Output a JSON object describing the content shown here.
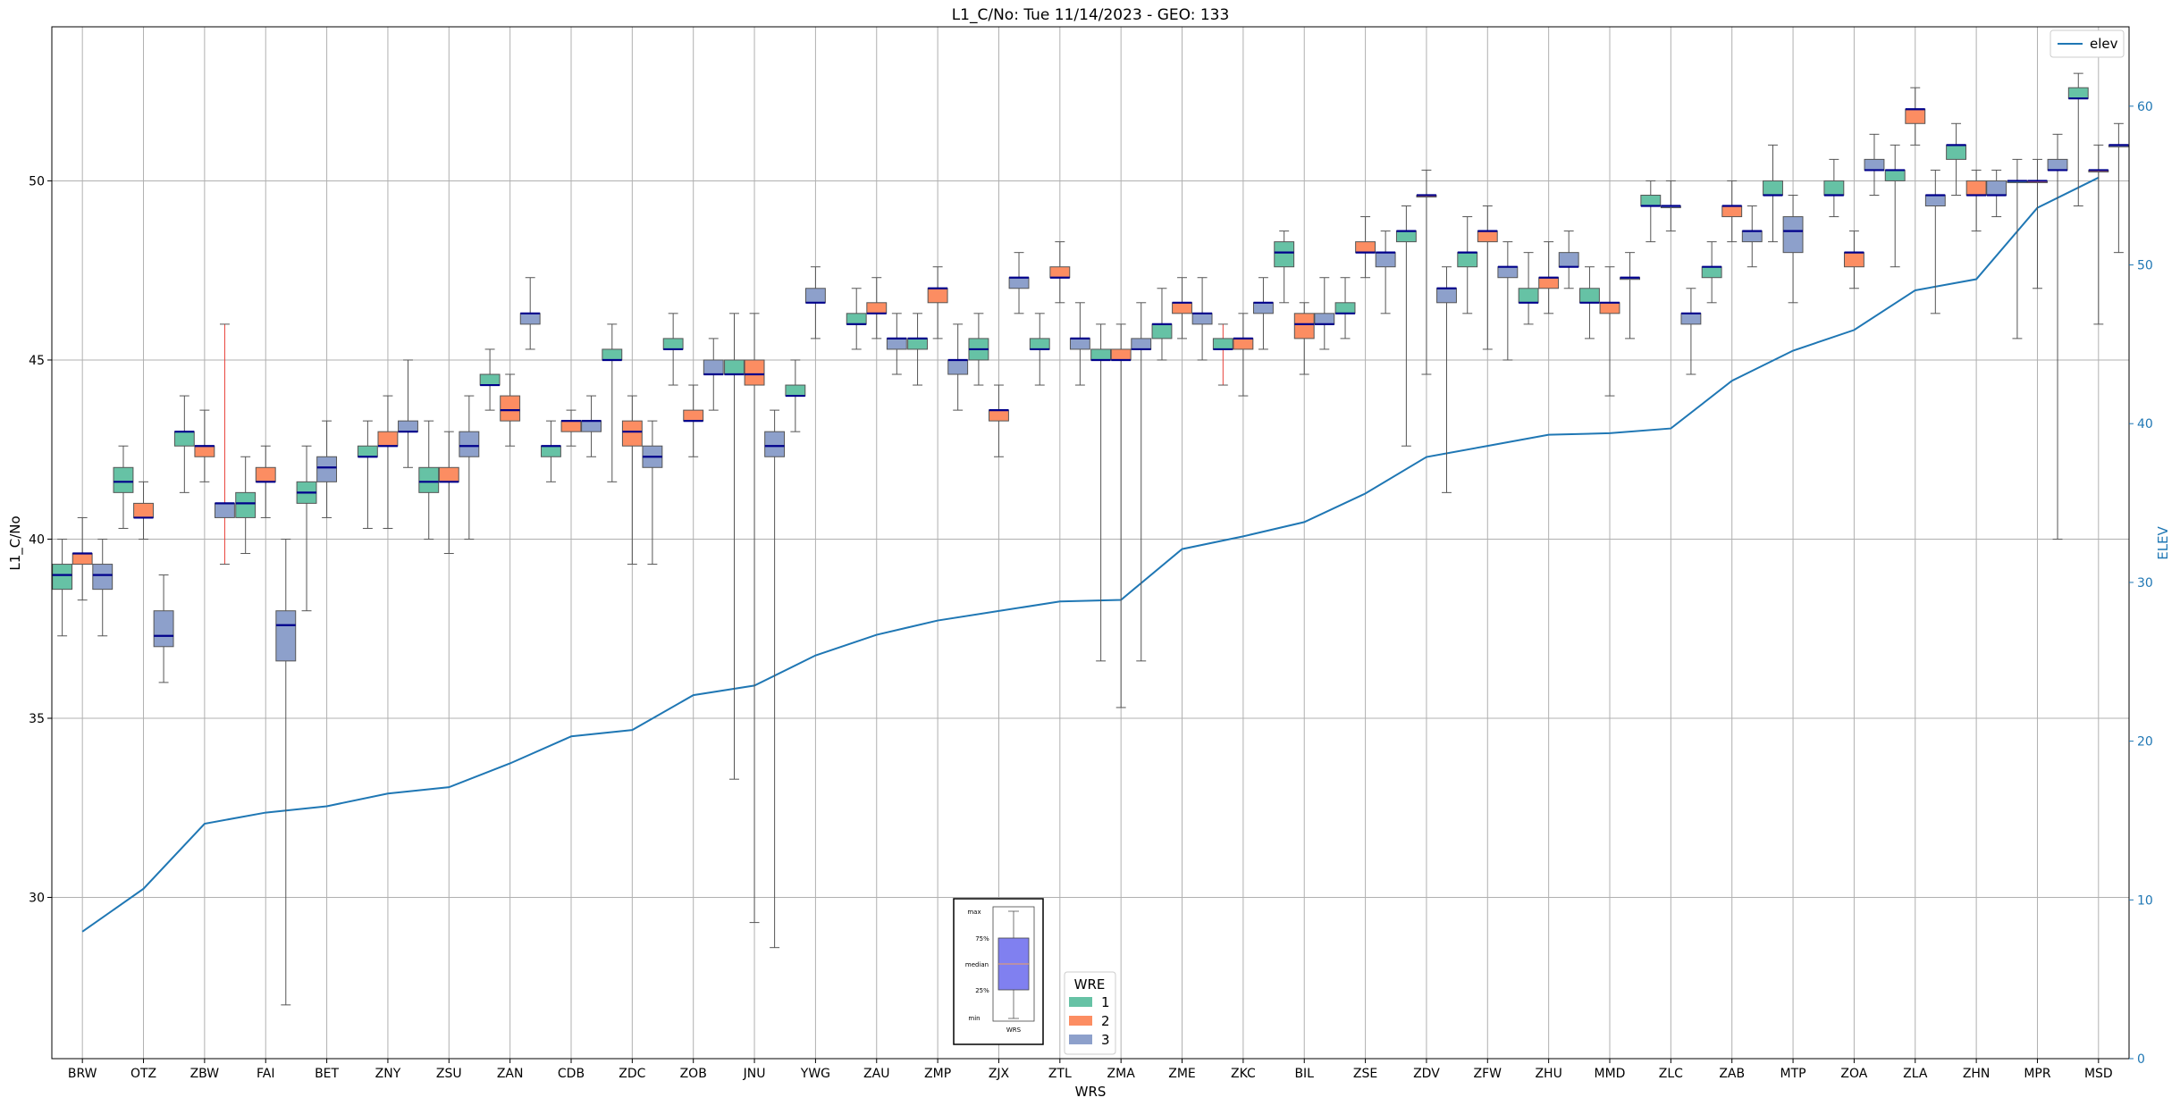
{
  "chart_data": {
    "type": "box",
    "title": "L1_C/No: Tue 11/14/2023 - GEO: 133",
    "xlabel": "WRS",
    "ylabel": "L1_C/No",
    "y2label": "ELEV",
    "ylim": [
      25.5,
      54.3
    ],
    "y2lim": [
      0,
      65
    ],
    "yticks": [
      "30",
      "35",
      "40",
      "45",
      "50"
    ],
    "y2ticks": [
      "0",
      "10",
      "20",
      "30",
      "40",
      "50",
      "60"
    ],
    "grid": true,
    "categories": [
      "BRW",
      "OTZ",
      "ZBW",
      "FAI",
      "BET",
      "ZNY",
      "ZSU",
      "ZAN",
      "CDB",
      "ZDC",
      "ZOB",
      "JNU",
      "YWG",
      "ZAU",
      "ZMP",
      "ZJX",
      "ZTL",
      "ZMA",
      "ZME",
      "ZKC",
      "BIL",
      "ZSE",
      "ZDV",
      "ZFW",
      "ZHU",
      "MMD",
      "ZLC",
      "ZAB",
      "MTP",
      "ZOA",
      "ZLA",
      "ZHN",
      "MPR",
      "MSD"
    ],
    "wre_colors": {
      "1": "#66c2a5",
      "2": "#fc8d62",
      "3": "#8da0cb"
    },
    "box_series": [
      {
        "cat": "BRW",
        "wre": 1,
        "min": 37.3,
        "q1": 38.6,
        "med": 39.0,
        "q3": 39.3,
        "max": 40.0
      },
      {
        "cat": "BRW",
        "wre": 2,
        "min": 38.3,
        "q1": 39.3,
        "med": 39.6,
        "q3": 39.6,
        "max": 40.6
      },
      {
        "cat": "BRW",
        "wre": 3,
        "min": 37.3,
        "q1": 38.6,
        "med": 39.0,
        "q3": 39.3,
        "max": 40.0
      },
      {
        "cat": "OTZ",
        "wre": 1,
        "min": 40.3,
        "q1": 41.3,
        "med": 41.6,
        "q3": 42.0,
        "max": 42.6
      },
      {
        "cat": "OTZ",
        "wre": 2,
        "min": 40.0,
        "q1": 40.6,
        "med": 40.6,
        "q3": 41.0,
        "max": 41.6
      },
      {
        "cat": "OTZ",
        "wre": 3,
        "min": 36.0,
        "q1": 37.0,
        "med": 37.3,
        "q3": 38.0,
        "max": 39.0
      },
      {
        "cat": "ZBW",
        "wre": 1,
        "min": 41.3,
        "q1": 42.6,
        "med": 43.0,
        "q3": 43.0,
        "max": 44.0
      },
      {
        "cat": "ZBW",
        "wre": 2,
        "min": 41.6,
        "q1": 42.3,
        "med": 42.6,
        "q3": 42.6,
        "max": 43.6
      },
      {
        "cat": "ZBW",
        "wre": 3,
        "min": 39.3,
        "q1": 40.6,
        "med": 41.0,
        "q3": 41.0,
        "max": 46.0,
        "red": true
      },
      {
        "cat": "FAI",
        "wre": 1,
        "min": 39.6,
        "q1": 40.6,
        "med": 41.0,
        "q3": 41.3,
        "max": 42.3
      },
      {
        "cat": "FAI",
        "wre": 2,
        "min": 40.6,
        "q1": 41.6,
        "med": 41.6,
        "q3": 42.0,
        "max": 42.6
      },
      {
        "cat": "FAI",
        "wre": 3,
        "min": 27.0,
        "q1": 36.6,
        "med": 37.6,
        "q3": 38.0,
        "max": 40.0
      },
      {
        "cat": "BET",
        "wre": 1,
        "min": 38.0,
        "q1": 41.0,
        "med": 41.3,
        "q3": 41.6,
        "max": 42.6
      },
      {
        "cat": "BET",
        "wre": 3,
        "min": 40.6,
        "q1": 41.6,
        "med": 42.0,
        "q3": 42.3,
        "max": 43.3
      },
      {
        "cat": "ZNY",
        "wre": 1,
        "min": 40.3,
        "q1": 42.3,
        "med": 42.3,
        "q3": 42.6,
        "max": 43.3
      },
      {
        "cat": "ZNY",
        "wre": 2,
        "min": 40.3,
        "q1": 42.6,
        "med": 42.6,
        "q3": 43.0,
        "max": 44.0
      },
      {
        "cat": "ZNY",
        "wre": 3,
        "min": 42.0,
        "q1": 43.0,
        "med": 43.0,
        "q3": 43.3,
        "max": 45.0
      },
      {
        "cat": "ZSU",
        "wre": 1,
        "min": 40.0,
        "q1": 41.3,
        "med": 41.6,
        "q3": 42.0,
        "max": 43.3
      },
      {
        "cat": "ZSU",
        "wre": 2,
        "min": 39.6,
        "q1": 41.6,
        "med": 41.6,
        "q3": 42.0,
        "max": 43.0
      },
      {
        "cat": "ZSU",
        "wre": 3,
        "min": 40.0,
        "q1": 42.3,
        "med": 42.6,
        "q3": 43.0,
        "max": 44.0
      },
      {
        "cat": "ZAN",
        "wre": 1,
        "min": 43.6,
        "q1": 44.3,
        "med": 44.3,
        "q3": 44.6,
        "max": 45.3
      },
      {
        "cat": "ZAN",
        "wre": 2,
        "min": 42.6,
        "q1": 43.3,
        "med": 43.6,
        "q3": 44.0,
        "max": 44.6
      },
      {
        "cat": "ZAN",
        "wre": 3,
        "min": 45.3,
        "q1": 46.0,
        "med": 46.3,
        "q3": 46.3,
        "max": 47.3
      },
      {
        "cat": "CDB",
        "wre": 1,
        "min": 41.6,
        "q1": 42.3,
        "med": 42.6,
        "q3": 42.6,
        "max": 43.3
      },
      {
        "cat": "CDB",
        "wre": 2,
        "min": 42.6,
        "q1": 43.0,
        "med": 43.3,
        "q3": 43.3,
        "max": 43.6
      },
      {
        "cat": "CDB",
        "wre": 3,
        "min": 42.3,
        "q1": 43.0,
        "med": 43.3,
        "q3": 43.3,
        "max": 44.0
      },
      {
        "cat": "ZDC",
        "wre": 1,
        "min": 41.6,
        "q1": 45.0,
        "med": 45.0,
        "q3": 45.3,
        "max": 46.0
      },
      {
        "cat": "ZDC",
        "wre": 2,
        "min": 39.3,
        "q1": 42.6,
        "med": 43.0,
        "q3": 43.3,
        "max": 44.0
      },
      {
        "cat": "ZDC",
        "wre": 3,
        "min": 39.3,
        "q1": 42.0,
        "med": 42.3,
        "q3": 42.6,
        "max": 43.3
      },
      {
        "cat": "ZOB",
        "wre": 1,
        "min": 44.3,
        "q1": 45.3,
        "med": 45.3,
        "q3": 45.6,
        "max": 46.3
      },
      {
        "cat": "ZOB",
        "wre": 2,
        "min": 42.3,
        "q1": 43.3,
        "med": 43.3,
        "q3": 43.6,
        "max": 44.3
      },
      {
        "cat": "ZOB",
        "wre": 3,
        "min": 43.6,
        "q1": 44.6,
        "med": 44.6,
        "q3": 45.0,
        "max": 45.6
      },
      {
        "cat": "JNU",
        "wre": 1,
        "min": 33.3,
        "q1": 44.6,
        "med": 44.6,
        "q3": 45.0,
        "max": 46.3
      },
      {
        "cat": "JNU",
        "wre": 2,
        "min": 29.3,
        "q1": 44.3,
        "med": 44.6,
        "q3": 45.0,
        "max": 46.3
      },
      {
        "cat": "JNU",
        "wre": 3,
        "min": 28.6,
        "q1": 42.3,
        "med": 42.6,
        "q3": 43.0,
        "max": 43.6
      },
      {
        "cat": "YWG",
        "wre": 1,
        "min": 43.0,
        "q1": 44.0,
        "med": 44.0,
        "q3": 44.3,
        "max": 45.0
      },
      {
        "cat": "YWG",
        "wre": 3,
        "min": 45.6,
        "q1": 46.6,
        "med": 46.6,
        "q3": 47.0,
        "max": 47.6
      },
      {
        "cat": "ZAU",
        "wre": 1,
        "min": 45.3,
        "q1": 46.0,
        "med": 46.0,
        "q3": 46.3,
        "max": 47.0
      },
      {
        "cat": "ZAU",
        "wre": 2,
        "min": 45.6,
        "q1": 46.3,
        "med": 46.3,
        "q3": 46.6,
        "max": 47.3
      },
      {
        "cat": "ZAU",
        "wre": 3,
        "min": 44.6,
        "q1": 45.3,
        "med": 45.6,
        "q3": 45.6,
        "max": 46.3
      },
      {
        "cat": "ZMP",
        "wre": 1,
        "min": 44.3,
        "q1": 45.3,
        "med": 45.6,
        "q3": 45.6,
        "max": 46.3
      },
      {
        "cat": "ZMP",
        "wre": 2,
        "min": 45.6,
        "q1": 46.6,
        "med": 47.0,
        "q3": 47.0,
        "max": 47.6
      },
      {
        "cat": "ZMP",
        "wre": 3,
        "min": 43.6,
        "q1": 44.6,
        "med": 45.0,
        "q3": 45.0,
        "max": 46.0
      },
      {
        "cat": "ZJX",
        "wre": 1,
        "min": 44.3,
        "q1": 45.0,
        "med": 45.3,
        "q3": 45.6,
        "max": 46.3
      },
      {
        "cat": "ZJX",
        "wre": 2,
        "min": 42.3,
        "q1": 43.3,
        "med": 43.6,
        "q3": 43.6,
        "max": 44.3
      },
      {
        "cat": "ZJX",
        "wre": 3,
        "min": 46.3,
        "q1": 47.0,
        "med": 47.3,
        "q3": 47.3,
        "max": 48.0
      },
      {
        "cat": "ZTL",
        "wre": 1,
        "min": 44.3,
        "q1": 45.3,
        "med": 45.3,
        "q3": 45.6,
        "max": 46.3
      },
      {
        "cat": "ZTL",
        "wre": 2,
        "min": 46.6,
        "q1": 47.3,
        "med": 47.3,
        "q3": 47.6,
        "max": 48.3
      },
      {
        "cat": "ZTL",
        "wre": 3,
        "min": 44.3,
        "q1": 45.3,
        "med": 45.6,
        "q3": 45.6,
        "max": 46.6
      },
      {
        "cat": "ZMA",
        "wre": 1,
        "min": 36.6,
        "q1": 45.0,
        "med": 45.0,
        "q3": 45.3,
        "max": 46.0
      },
      {
        "cat": "ZMA",
        "wre": 2,
        "min": 35.3,
        "q1": 45.0,
        "med": 45.0,
        "q3": 45.3,
        "max": 46.0
      },
      {
        "cat": "ZMA",
        "wre": 3,
        "min": 36.6,
        "q1": 45.3,
        "med": 45.3,
        "q3": 45.6,
        "max": 46.6
      },
      {
        "cat": "ZME",
        "wre": 1,
        "min": 45.0,
        "q1": 45.6,
        "med": 46.0,
        "q3": 46.0,
        "max": 47.0
      },
      {
        "cat": "ZME",
        "wre": 2,
        "min": 45.6,
        "q1": 46.3,
        "med": 46.6,
        "q3": 46.6,
        "max": 47.3
      },
      {
        "cat": "ZME",
        "wre": 3,
        "min": 45.0,
        "q1": 46.0,
        "med": 46.3,
        "q3": 46.3,
        "max": 47.3
      },
      {
        "cat": "ZKC",
        "wre": 1,
        "min": 44.3,
        "q1": 45.3,
        "med": 45.3,
        "q3": 45.6,
        "max": 46.0,
        "red": true
      },
      {
        "cat": "ZKC",
        "wre": 2,
        "min": 44.0,
        "q1": 45.3,
        "med": 45.6,
        "q3": 45.6,
        "max": 46.3
      },
      {
        "cat": "ZKC",
        "wre": 3,
        "min": 45.3,
        "q1": 46.3,
        "med": 46.6,
        "q3": 46.6,
        "max": 47.3
      },
      {
        "cat": "BIL",
        "wre": 1,
        "min": 46.6,
        "q1": 47.6,
        "med": 48.0,
        "q3": 48.3,
        "max": 48.6
      },
      {
        "cat": "BIL",
        "wre": 2,
        "min": 44.6,
        "q1": 45.6,
        "med": 46.0,
        "q3": 46.3,
        "max": 46.6
      },
      {
        "cat": "BIL",
        "wre": 3,
        "min": 45.3,
        "q1": 46.0,
        "med": 46.0,
        "q3": 46.3,
        "max": 47.3
      },
      {
        "cat": "ZSE",
        "wre": 1,
        "min": 45.6,
        "q1": 46.3,
        "med": 46.3,
        "q3": 46.6,
        "max": 47.3
      },
      {
        "cat": "ZSE",
        "wre": 2,
        "min": 47.3,
        "q1": 48.0,
        "med": 48.0,
        "q3": 48.3,
        "max": 49.0
      },
      {
        "cat": "ZSE",
        "wre": 3,
        "min": 46.3,
        "q1": 47.6,
        "med": 48.0,
        "q3": 48.0,
        "max": 48.6
      },
      {
        "cat": "ZDV",
        "wre": 1,
        "min": 42.6,
        "q1": 48.3,
        "med": 48.6,
        "q3": 48.6,
        "max": 49.3
      },
      {
        "cat": "ZDV",
        "wre": 2,
        "min": 44.6,
        "q1": 49.6,
        "med": 49.6,
        "q3": 49.6,
        "max": 50.3
      },
      {
        "cat": "ZDV",
        "wre": 3,
        "min": 41.3,
        "q1": 46.6,
        "med": 47.0,
        "q3": 47.0,
        "max": 47.6
      },
      {
        "cat": "ZFW",
        "wre": 1,
        "min": 46.3,
        "q1": 47.6,
        "med": 48.0,
        "q3": 48.0,
        "max": 49.0
      },
      {
        "cat": "ZFW",
        "wre": 2,
        "min": 45.3,
        "q1": 48.3,
        "med": 48.6,
        "q3": 48.6,
        "max": 49.3
      },
      {
        "cat": "ZFW",
        "wre": 3,
        "min": 45.0,
        "q1": 47.3,
        "med": 47.6,
        "q3": 47.6,
        "max": 48.3
      },
      {
        "cat": "ZHU",
        "wre": 1,
        "min": 46.0,
        "q1": 46.6,
        "med": 46.6,
        "q3": 47.0,
        "max": 48.0
      },
      {
        "cat": "ZHU",
        "wre": 2,
        "min": 46.3,
        "q1": 47.0,
        "med": 47.3,
        "q3": 47.3,
        "max": 48.3
      },
      {
        "cat": "ZHU",
        "wre": 3,
        "min": 47.0,
        "q1": 47.6,
        "med": 47.6,
        "q3": 48.0,
        "max": 48.6
      },
      {
        "cat": "MMD",
        "wre": 1,
        "min": 45.6,
        "q1": 46.6,
        "med": 46.6,
        "q3": 47.0,
        "max": 47.6
      },
      {
        "cat": "MMD",
        "wre": 2,
        "min": 44.0,
        "q1": 46.3,
        "med": 46.6,
        "q3": 46.6,
        "max": 47.6
      },
      {
        "cat": "MMD",
        "wre": 3,
        "min": 45.6,
        "q1": 47.3,
        "med": 47.3,
        "q3": 47.3,
        "max": 48.0
      },
      {
        "cat": "ZLC",
        "wre": 1,
        "min": 48.3,
        "q1": 49.3,
        "med": 49.3,
        "q3": 49.6,
        "max": 50.0
      },
      {
        "cat": "ZLC",
        "wre": 3,
        "min": 48.6,
        "q1": 49.3,
        "med": 49.3,
        "q3": 49.3,
        "max": 50.0
      },
      {
        "cat": "ZLC",
        "wre": 3,
        "min": 44.6,
        "q1": 46.0,
        "med": 46.3,
        "q3": 46.3,
        "max": 47.0
      },
      {
        "cat": "ZAB",
        "wre": 1,
        "min": 46.6,
        "q1": 47.3,
        "med": 47.6,
        "q3": 47.6,
        "max": 48.3
      },
      {
        "cat": "ZAB",
        "wre": 2,
        "min": 48.3,
        "q1": 49.0,
        "med": 49.3,
        "q3": 49.3,
        "max": 50.0
      },
      {
        "cat": "ZAB",
        "wre": 3,
        "min": 47.6,
        "q1": 48.3,
        "med": 48.6,
        "q3": 48.6,
        "max": 49.3
      },
      {
        "cat": "MTP",
        "wre": 1,
        "min": 48.3,
        "q1": 49.6,
        "med": 49.6,
        "q3": 50.0,
        "max": 51.0
      },
      {
        "cat": "MTP",
        "wre": 3,
        "min": 46.6,
        "q1": 48.0,
        "med": 48.6,
        "q3": 49.0,
        "max": 49.6
      },
      {
        "cat": "ZOA",
        "wre": 1,
        "min": 49.0,
        "q1": 49.6,
        "med": 49.6,
        "q3": 50.0,
        "max": 50.6
      },
      {
        "cat": "ZOA",
        "wre": 2,
        "min": 47.0,
        "q1": 47.6,
        "med": 48.0,
        "q3": 48.0,
        "max": 48.6
      },
      {
        "cat": "ZOA",
        "wre": 3,
        "min": 49.6,
        "q1": 50.3,
        "med": 50.3,
        "q3": 50.6,
        "max": 51.3
      },
      {
        "cat": "ZLA",
        "wre": 1,
        "min": 47.6,
        "q1": 50.0,
        "med": 50.3,
        "q3": 50.3,
        "max": 51.0
      },
      {
        "cat": "ZLA",
        "wre": 2,
        "min": 51.0,
        "q1": 51.6,
        "med": 52.0,
        "q3": 52.0,
        "max": 52.6
      },
      {
        "cat": "ZLA",
        "wre": 3,
        "min": 46.3,
        "q1": 49.3,
        "med": 49.6,
        "q3": 49.6,
        "max": 50.3
      },
      {
        "cat": "ZHN",
        "wre": 1,
        "min": 49.6,
        "q1": 50.6,
        "med": 51.0,
        "q3": 51.0,
        "max": 51.6
      },
      {
        "cat": "ZHN",
        "wre": 2,
        "min": 48.6,
        "q1": 49.6,
        "med": 49.6,
        "q3": 50.0,
        "max": 50.3
      },
      {
        "cat": "ZHN",
        "wre": 3,
        "min": 49.0,
        "q1": 49.6,
        "med": 49.6,
        "q3": 50.0,
        "max": 50.3
      },
      {
        "cat": "MPR",
        "wre": 1,
        "min": 45.6,
        "q1": 50.0,
        "med": 50.0,
        "q3": 50.0,
        "max": 50.6
      },
      {
        "cat": "MPR",
        "wre": 2,
        "min": 47.0,
        "q1": 50.0,
        "med": 50.0,
        "q3": 50.0,
        "max": 50.6
      },
      {
        "cat": "MPR",
        "wre": 3,
        "min": 40.0,
        "q1": 50.3,
        "med": 50.3,
        "q3": 50.6,
        "max": 51.3
      },
      {
        "cat": "MSD",
        "wre": 1,
        "min": 49.3,
        "q1": 52.3,
        "med": 52.3,
        "q3": 52.6,
        "max": 53.0
      },
      {
        "cat": "MSD",
        "wre": 2,
        "min": 46.0,
        "q1": 50.3,
        "med": 50.3,
        "q3": 50.3,
        "max": 51.0
      },
      {
        "cat": "MSD",
        "wre": 3,
        "min": 48.0,
        "q1": 51.0,
        "med": 51.0,
        "q3": 51.0,
        "max": 51.6
      }
    ],
    "elev_series": {
      "name": "elev",
      "color": "#1f77b4",
      "values": [
        8.0,
        10.7,
        14.8,
        15.5,
        15.9,
        16.7,
        17.1,
        18.6,
        20.3,
        20.7,
        22.9,
        23.5,
        25.4,
        26.7,
        27.6,
        28.2,
        28.8,
        28.9,
        32.1,
        32.9,
        33.8,
        35.6,
        37.9,
        38.6,
        39.3,
        39.4,
        39.7,
        42.7,
        44.6,
        45.9,
        48.4,
        49.1,
        53.6,
        55.5
      ]
    },
    "legend_elev_placement": "top-right",
    "legend_wre_title": "WRE",
    "legend_wre_entries": [
      "1",
      "2",
      "3"
    ],
    "legend_wre_placement": "bottom-center",
    "inset_labels": [
      "max",
      "75%",
      "median",
      "25%",
      "min",
      "WRS"
    ]
  }
}
